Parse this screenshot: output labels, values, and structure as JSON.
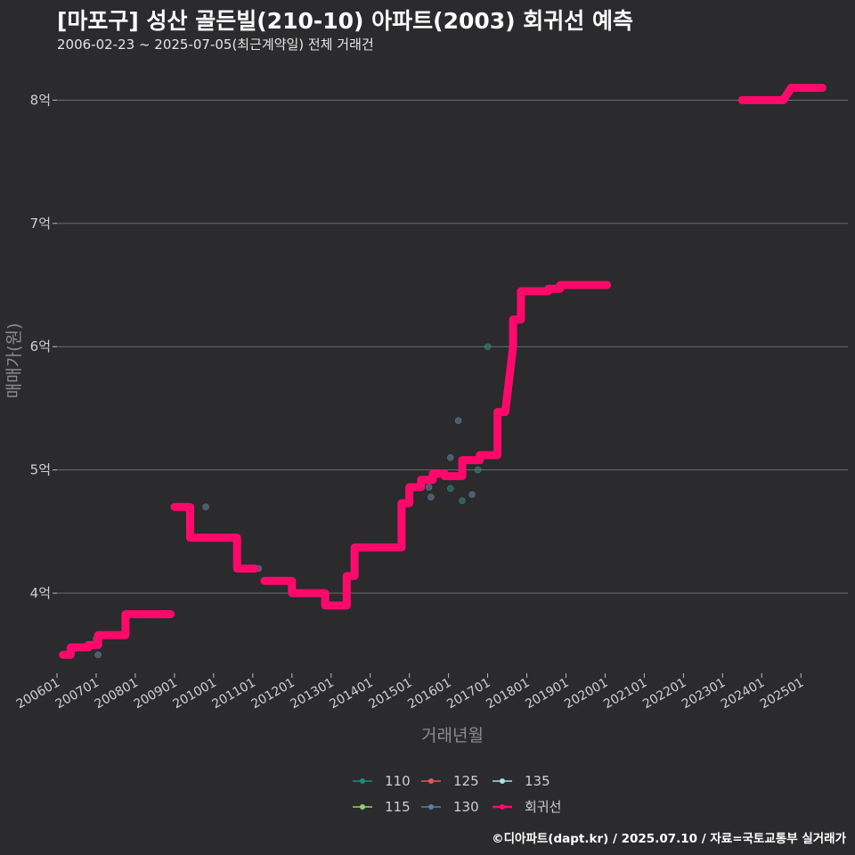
{
  "header": {
    "title": "[마포구] 성산 골든빌(210-10) 아파트(2003) 회귀선 예측",
    "subtitle": "2006-02-23 ~ 2025-07-05(최근계약일) 전체 거래건"
  },
  "footer": {
    "credit": "©디아파트(dapt.kr) / 2025.07.10 / 자료=국토교통부 실거래가"
  },
  "colors": {
    "background": "#2b2a2c",
    "grid": "#6e6e6e",
    "regression": "#ff0a6c",
    "s110": "#1f8a78",
    "s115": "#8fd16a",
    "s125": "#e05a5a",
    "s130": "#5b7fa8",
    "s135": "#a8e3e0"
  },
  "chart_data": {
    "type": "line",
    "title": "[마포구] 성산 골든빌(210-10) 아파트(2003) 회귀선 예측",
    "xlabel": "거래년월",
    "ylabel": "매매가(원)",
    "xlim": [
      2006.0,
      2026.2
    ],
    "ylim": [
      3.35,
      8.35
    ],
    "y_ticks": [
      {
        "value": 4,
        "label": "4억"
      },
      {
        "value": 5,
        "label": "5억"
      },
      {
        "value": 6,
        "label": "6억"
      },
      {
        "value": 7,
        "label": "7억"
      },
      {
        "value": 8,
        "label": "8억"
      }
    ],
    "x_ticks": [
      {
        "value": 2006.0,
        "label": "200601"
      },
      {
        "value": 2007.0,
        "label": "200701"
      },
      {
        "value": 2008.0,
        "label": "200801"
      },
      {
        "value": 2009.0,
        "label": "200901"
      },
      {
        "value": 2010.0,
        "label": "201001"
      },
      {
        "value": 2011.0,
        "label": "201101"
      },
      {
        "value": 2012.0,
        "label": "201201"
      },
      {
        "value": 2013.0,
        "label": "201301"
      },
      {
        "value": 2014.0,
        "label": "201401"
      },
      {
        "value": 2015.0,
        "label": "201501"
      },
      {
        "value": 2016.0,
        "label": "201601"
      },
      {
        "value": 2017.0,
        "label": "201701"
      },
      {
        "value": 2018.0,
        "label": "201801"
      },
      {
        "value": 2019.0,
        "label": "201901"
      },
      {
        "value": 2020.0,
        "label": "202001"
      },
      {
        "value": 2021.0,
        "label": "202101"
      },
      {
        "value": 2022.0,
        "label": "202201"
      },
      {
        "value": 2023.0,
        "label": "202301"
      },
      {
        "value": 2024.0,
        "label": "202401"
      },
      {
        "value": 2025.0,
        "label": "202501"
      }
    ],
    "legend": [
      {
        "key": "110",
        "label": "110",
        "color": "#1f8a78"
      },
      {
        "key": "125",
        "label": "125",
        "color": "#e05a5a"
      },
      {
        "key": "135",
        "label": "135",
        "color": "#a8e3e0"
      },
      {
        "key": "115",
        "label": "115",
        "color": "#8fd16a"
      },
      {
        "key": "130",
        "label": "130",
        "color": "#5b7fa8"
      },
      {
        "key": "reg",
        "label": "회귀선",
        "color": "#ff0a6c"
      }
    ],
    "regression_segments": [
      [
        [
          2006.15,
          3.5
        ],
        [
          2006.35,
          3.5
        ],
        [
          2006.35,
          3.56
        ],
        [
          2006.8,
          3.56
        ],
        [
          2006.8,
          3.58
        ],
        [
          2007.05,
          3.58
        ],
        [
          2007.05,
          3.66
        ],
        [
          2007.75,
          3.66
        ],
        [
          2007.75,
          3.83
        ],
        [
          2008.9,
          3.83
        ]
      ],
      [
        [
          2009.0,
          4.7
        ],
        [
          2009.4,
          4.7
        ],
        [
          2009.4,
          4.45
        ],
        [
          2010.6,
          4.45
        ],
        [
          2010.6,
          4.2
        ],
        [
          2011.05,
          4.2
        ]
      ],
      [
        [
          2011.3,
          4.1
        ],
        [
          2012.0,
          4.1
        ],
        [
          2012.0,
          4.0
        ],
        [
          2012.85,
          4.0
        ],
        [
          2012.85,
          3.9
        ],
        [
          2013.4,
          3.9
        ],
        [
          2013.4,
          4.14
        ],
        [
          2013.6,
          4.14
        ],
        [
          2013.6,
          4.37
        ],
        [
          2014.8,
          4.37
        ],
        [
          2014.8,
          4.73
        ],
        [
          2015.0,
          4.73
        ],
        [
          2015.0,
          4.86
        ],
        [
          2015.3,
          4.86
        ],
        [
          2015.3,
          4.92
        ],
        [
          2015.6,
          4.92
        ],
        [
          2015.6,
          4.97
        ],
        [
          2015.9,
          4.97
        ],
        [
          2015.9,
          4.95
        ],
        [
          2016.35,
          4.95
        ],
        [
          2016.35,
          5.08
        ],
        [
          2016.8,
          5.08
        ],
        [
          2016.8,
          5.12
        ],
        [
          2017.25,
          5.12
        ],
        [
          2017.25,
          5.47
        ],
        [
          2017.45,
          5.47
        ],
        [
          2017.65,
          6.0
        ],
        [
          2017.65,
          6.22
        ],
        [
          2017.85,
          6.22
        ],
        [
          2017.85,
          6.45
        ],
        [
          2018.55,
          6.45
        ],
        [
          2018.55,
          6.47
        ],
        [
          2018.85,
          6.47
        ],
        [
          2018.85,
          6.5
        ],
        [
          2020.05,
          6.5
        ]
      ],
      [
        [
          2023.5,
          8.0
        ],
        [
          2024.55,
          8.0
        ],
        [
          2024.75,
          8.1
        ],
        [
          2025.55,
          8.1
        ]
      ]
    ],
    "points": [
      {
        "x": 2007.0,
        "y": 3.63,
        "series": "130"
      },
      {
        "x": 2007.05,
        "y": 3.5,
        "series": "130"
      },
      {
        "x": 2009.8,
        "y": 4.7,
        "series": "130"
      },
      {
        "x": 2011.15,
        "y": 4.2,
        "series": "130"
      },
      {
        "x": 2015.5,
        "y": 4.86,
        "series": "130"
      },
      {
        "x": 2015.55,
        "y": 4.78,
        "series": "130"
      },
      {
        "x": 2016.05,
        "y": 5.1,
        "series": "130"
      },
      {
        "x": 2016.05,
        "y": 4.85,
        "series": "110"
      },
      {
        "x": 2016.25,
        "y": 5.4,
        "series": "130"
      },
      {
        "x": 2016.35,
        "y": 4.75,
        "series": "110"
      },
      {
        "x": 2016.6,
        "y": 4.8,
        "series": "130"
      },
      {
        "x": 2016.75,
        "y": 5.0,
        "series": "110"
      },
      {
        "x": 2017.0,
        "y": 6.0,
        "series": "110"
      }
    ]
  }
}
